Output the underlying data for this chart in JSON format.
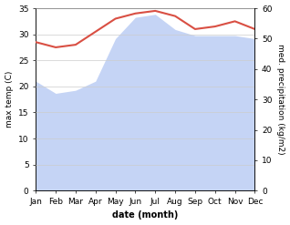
{
  "months": [
    "Jan",
    "Feb",
    "Mar",
    "Apr",
    "May",
    "Jun",
    "Jul",
    "Aug",
    "Sep",
    "Oct",
    "Nov",
    "Dec"
  ],
  "month_positions": [
    0,
    1,
    2,
    3,
    4,
    5,
    6,
    7,
    8,
    9,
    10,
    11
  ],
  "temp_max": [
    28.5,
    27.5,
    28.0,
    30.5,
    33.0,
    34.0,
    34.5,
    33.5,
    31.0,
    31.5,
    32.5,
    31.0
  ],
  "precipitation": [
    36,
    32,
    33,
    36,
    50,
    57,
    58,
    53,
    51,
    51,
    51,
    50
  ],
  "temp_ylim": [
    0,
    35
  ],
  "precip_ylim": [
    0,
    60
  ],
  "temp_yticks": [
    0,
    5,
    10,
    15,
    20,
    25,
    30,
    35
  ],
  "precip_yticks": [
    0,
    10,
    20,
    30,
    40,
    50,
    60
  ],
  "ylabel_left": "max temp (C)",
  "ylabel_right": "med. precipitation (kg/m2)",
  "xlabel": "date (month)",
  "precip_fill_color": "#c5d4f5",
  "temp_line_color": "#d94f43",
  "background_color": "#ffffff",
  "grid_color": "#cccccc"
}
